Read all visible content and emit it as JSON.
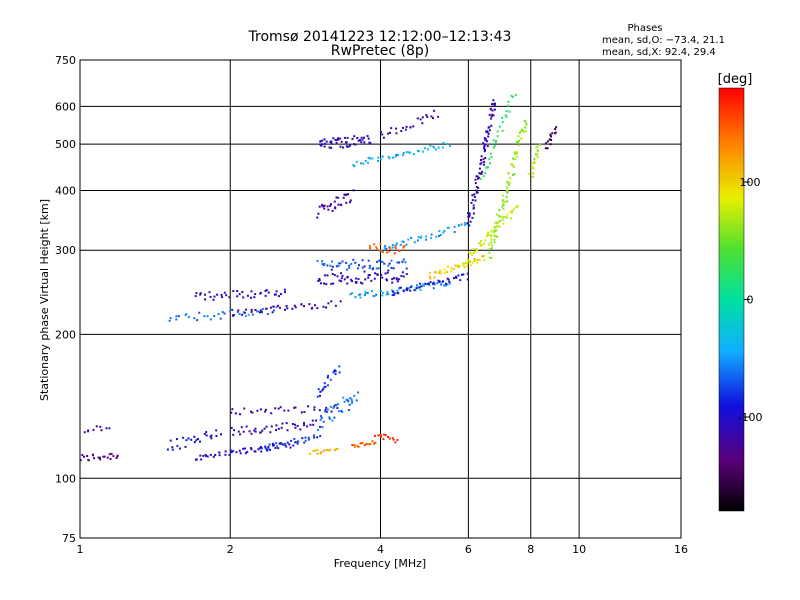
{
  "chart_data": {
    "type": "scatter",
    "title": "Tromsø 20141223 12:12:00–12:13:43",
    "subtitle": "RwPretec (8p)",
    "xlabel": "Frequency [MHz]",
    "ylabel": "Stationary phase Virtual Height [km]",
    "x_scale": "log",
    "y_scale": "log",
    "xlim": [
      1,
      16
    ],
    "ylim": [
      75,
      750
    ],
    "x_ticks": [
      1,
      2,
      4,
      6,
      8,
      10,
      16
    ],
    "y_ticks": [
      75,
      100,
      200,
      300,
      400,
      500,
      600,
      750
    ],
    "grid": true,
    "phases_box": {
      "title": "Phases",
      "line_o": "mean, sd,O:  −73.4, 21.1",
      "line_x": "mean, sd,X:  92.4, 29.4"
    },
    "colorbar": {
      "label": "[deg]",
      "range": [
        -180,
        180
      ],
      "ticks": [
        100,
        0,
        -100
      ]
    },
    "traces": [
      {
        "f0": 1.0,
        "f1": 1.2,
        "h0": 110,
        "h1": 112,
        "n": 22,
        "phase": -125,
        "spread": 0.02
      },
      {
        "f0": 1.0,
        "f1": 1.15,
        "h0": 125,
        "h1": 125,
        "n": 10,
        "phase": -120,
        "spread": 0.03
      },
      {
        "f0": 1.5,
        "f1": 1.9,
        "h0": 117,
        "h1": 125,
        "n": 26,
        "phase": -95,
        "spread": 0.03
      },
      {
        "f0": 1.7,
        "f1": 2.7,
        "h0": 110,
        "h1": 118,
        "n": 50,
        "phase": -105,
        "spread": 0.015
      },
      {
        "f0": 2.0,
        "f1": 3.0,
        "h0": 125,
        "h1": 130,
        "n": 40,
        "phase": -115,
        "spread": 0.02
      },
      {
        "f0": 2.0,
        "f1": 3.3,
        "h0": 138,
        "h1": 140,
        "n": 30,
        "phase": -120,
        "spread": 0.015
      },
      {
        "f0": 2.3,
        "f1": 3.0,
        "h0": 115,
        "h1": 122,
        "n": 30,
        "phase": -80,
        "spread": 0.015
      },
      {
        "f0": 3.0,
        "f1": 3.6,
        "h0": 130,
        "h1": 150,
        "n": 35,
        "phase": -60,
        "spread": 0.04
      },
      {
        "f0": 2.9,
        "f1": 3.3,
        "h0": 113,
        "h1": 115,
        "n": 14,
        "phase": 110,
        "spread": 0.01
      },
      {
        "f0": 3.5,
        "f1": 3.9,
        "h0": 117,
        "h1": 119,
        "n": 16,
        "phase": 150,
        "spread": 0.01
      },
      {
        "f0": 3.9,
        "f1": 4.3,
        "h0": 124,
        "h1": 120,
        "n": 14,
        "phase": 165,
        "spread": 0.012
      },
      {
        "f0": 3.0,
        "f1": 3.3,
        "h0": 150,
        "h1": 170,
        "n": 20,
        "phase": -85,
        "spread": 0.02
      },
      {
        "f0": 1.5,
        "f1": 2.5,
        "h0": 215,
        "h1": 225,
        "n": 35,
        "phase": -60,
        "spread": 0.02
      },
      {
        "f0": 1.7,
        "f1": 2.6,
        "h0": 240,
        "h1": 245,
        "n": 40,
        "phase": -110,
        "spread": 0.02
      },
      {
        "f0": 2.0,
        "f1": 3.3,
        "h0": 222,
        "h1": 232,
        "n": 40,
        "phase": -115,
        "spread": 0.015
      },
      {
        "f0": 3.0,
        "f1": 4.5,
        "h0": 260,
        "h1": 265,
        "n": 60,
        "phase": -110,
        "spread": 0.03
      },
      {
        "f0": 3.0,
        "f1": 4.5,
        "h0": 280,
        "h1": 280,
        "n": 50,
        "phase": -70,
        "spread": 0.025
      },
      {
        "f0": 3.5,
        "f1": 5.5,
        "h0": 240,
        "h1": 255,
        "n": 50,
        "phase": -50,
        "spread": 0.015
      },
      {
        "f0": 4.2,
        "f1": 6.0,
        "h0": 245,
        "h1": 265,
        "n": 40,
        "phase": -100,
        "spread": 0.015
      },
      {
        "f0": 4.0,
        "f1": 6.0,
        "h0": 300,
        "h1": 340,
        "n": 40,
        "phase": -50,
        "spread": 0.015
      },
      {
        "f0": 3.8,
        "f1": 4.5,
        "h0": 305,
        "h1": 300,
        "n": 18,
        "phase": 150,
        "spread": 0.025
      },
      {
        "f0": 5.0,
        "f1": 6.5,
        "h0": 265,
        "h1": 290,
        "n": 40,
        "phase": 100,
        "spread": 0.015
      },
      {
        "f0": 5.8,
        "f1": 7.5,
        "h0": 280,
        "h1": 370,
        "n": 50,
        "phase": 80,
        "spread": 0.02
      },
      {
        "f0": 6.0,
        "f1": 6.8,
        "h0": 340,
        "h1": 620,
        "n": 80,
        "phase": -115,
        "spread": 0.025
      },
      {
        "f0": 6.6,
        "f1": 7.8,
        "h0": 290,
        "h1": 560,
        "n": 80,
        "phase": 60,
        "spread": 0.025
      },
      {
        "f0": 6.4,
        "f1": 7.4,
        "h0": 420,
        "h1": 640,
        "n": 30,
        "phase": 25,
        "spread": 0.02
      },
      {
        "f0": 8.0,
        "f1": 8.3,
        "h0": 430,
        "h1": 500,
        "n": 18,
        "phase": 65,
        "spread": 0.01
      },
      {
        "f0": 8.6,
        "f1": 9.0,
        "h0": 490,
        "h1": 540,
        "n": 14,
        "phase": -150,
        "spread": 0.01
      },
      {
        "f0": 3.0,
        "f1": 3.8,
        "h0": 500,
        "h1": 510,
        "n": 50,
        "phase": -110,
        "spread": 0.025
      },
      {
        "f0": 3.5,
        "f1": 5.5,
        "h0": 455,
        "h1": 500,
        "n": 40,
        "phase": -40,
        "spread": 0.015
      },
      {
        "f0": 4.0,
        "f1": 5.2,
        "h0": 520,
        "h1": 580,
        "n": 25,
        "phase": -115,
        "spread": 0.02
      },
      {
        "f0": 3.0,
        "f1": 3.5,
        "h0": 360,
        "h1": 390,
        "n": 30,
        "phase": -115,
        "spread": 0.03
      }
    ]
  }
}
